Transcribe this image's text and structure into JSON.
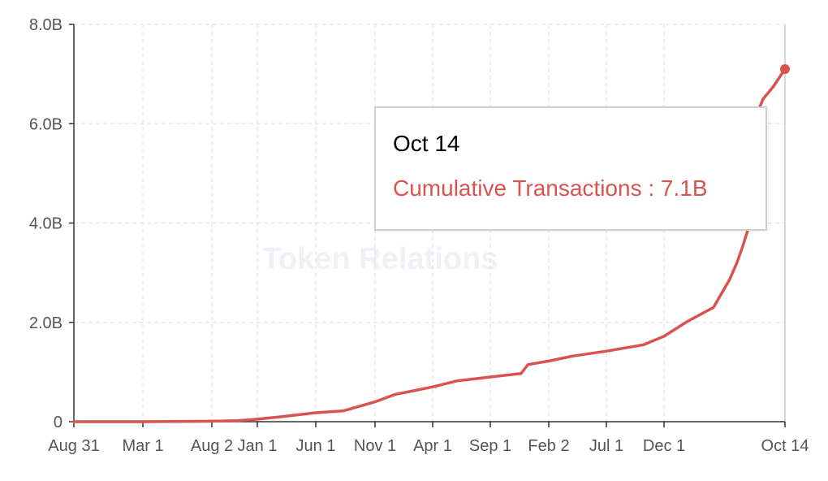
{
  "watermark": "Token Relations",
  "tooltip": {
    "date": "Oct 14",
    "series_label": "Cumulative Transactions",
    "separator": " : ",
    "value": "7.1B"
  },
  "colors": {
    "series": "#d9534f",
    "grid": "#e3e3e3",
    "axis": "#333333",
    "crosshair": "#cccccc"
  },
  "chart_data": {
    "type": "line",
    "title": "",
    "xlabel": "",
    "ylabel": "",
    "ylim": [
      0,
      8.0
    ],
    "y_unit": "B",
    "y_ticks": [
      {
        "value": 0,
        "label": "0"
      },
      {
        "value": 2.0,
        "label": "2.0B"
      },
      {
        "value": 4.0,
        "label": "4.0B"
      },
      {
        "value": 6.0,
        "label": "6.0B"
      },
      {
        "value": 8.0,
        "label": "8.0B"
      }
    ],
    "x_ticks": [
      {
        "date": "2009-08-31",
        "label": "Aug 31"
      },
      {
        "date": "2011-03-01",
        "label": "Mar 1"
      },
      {
        "date": "2012-08-02",
        "label": "Aug 2"
      },
      {
        "date": "2014-01-01",
        "label": "Jan 1"
      },
      {
        "date": "2015-06-01",
        "label": "Jun 1"
      },
      {
        "date": "2016-11-01",
        "label": "Nov 1"
      },
      {
        "date": "2018-04-01",
        "label": "Apr 1"
      },
      {
        "date": "2019-09-01",
        "label": "Sep 1"
      },
      {
        "date": "2021-02-02",
        "label": "Feb 2"
      },
      {
        "date": "2022-07-01",
        "label": "Jul 1"
      },
      {
        "date": "2023-12-01",
        "label": "Dec 1"
      },
      {
        "date": "2027-10-14",
        "label": "Oct 14"
      }
    ],
    "grid": true,
    "series": [
      {
        "name": "Cumulative Transactions",
        "points": [
          [
            "2009-08-31",
            0.0
          ],
          [
            "2011-03-01",
            0.0
          ],
          [
            "2012-08-02",
            0.01
          ],
          [
            "2013-06-01",
            0.02
          ],
          [
            "2014-01-01",
            0.05
          ],
          [
            "2014-08-01",
            0.1
          ],
          [
            "2015-06-01",
            0.18
          ],
          [
            "2016-02-01",
            0.22
          ],
          [
            "2016-11-01",
            0.4
          ],
          [
            "2017-05-01",
            0.55
          ],
          [
            "2018-04-01",
            0.7
          ],
          [
            "2018-11-01",
            0.82
          ],
          [
            "2019-09-01",
            0.9
          ],
          [
            "2020-06-01",
            0.97
          ],
          [
            "2020-08-01",
            1.15
          ],
          [
            "2021-02-02",
            1.22
          ],
          [
            "2021-09-01",
            1.32
          ],
          [
            "2022-07-01",
            1.42
          ],
          [
            "2023-06-01",
            1.55
          ],
          [
            "2023-12-01",
            1.72
          ],
          [
            "2024-09-01",
            2.02
          ],
          [
            "2025-07-01",
            2.3
          ],
          [
            "2026-01-01",
            2.85
          ],
          [
            "2026-04-01",
            3.2
          ],
          [
            "2026-06-01",
            3.5
          ],
          [
            "2026-09-01",
            4.0
          ],
          [
            "2026-11-01",
            4.35
          ],
          [
            "2026-11-20",
            6.2
          ],
          [
            "2027-02-01",
            6.5
          ],
          [
            "2027-06-01",
            6.75
          ],
          [
            "2027-10-14",
            7.1
          ]
        ]
      }
    ],
    "highlight": {
      "date": "2027-10-14",
      "value": 7.1
    }
  }
}
